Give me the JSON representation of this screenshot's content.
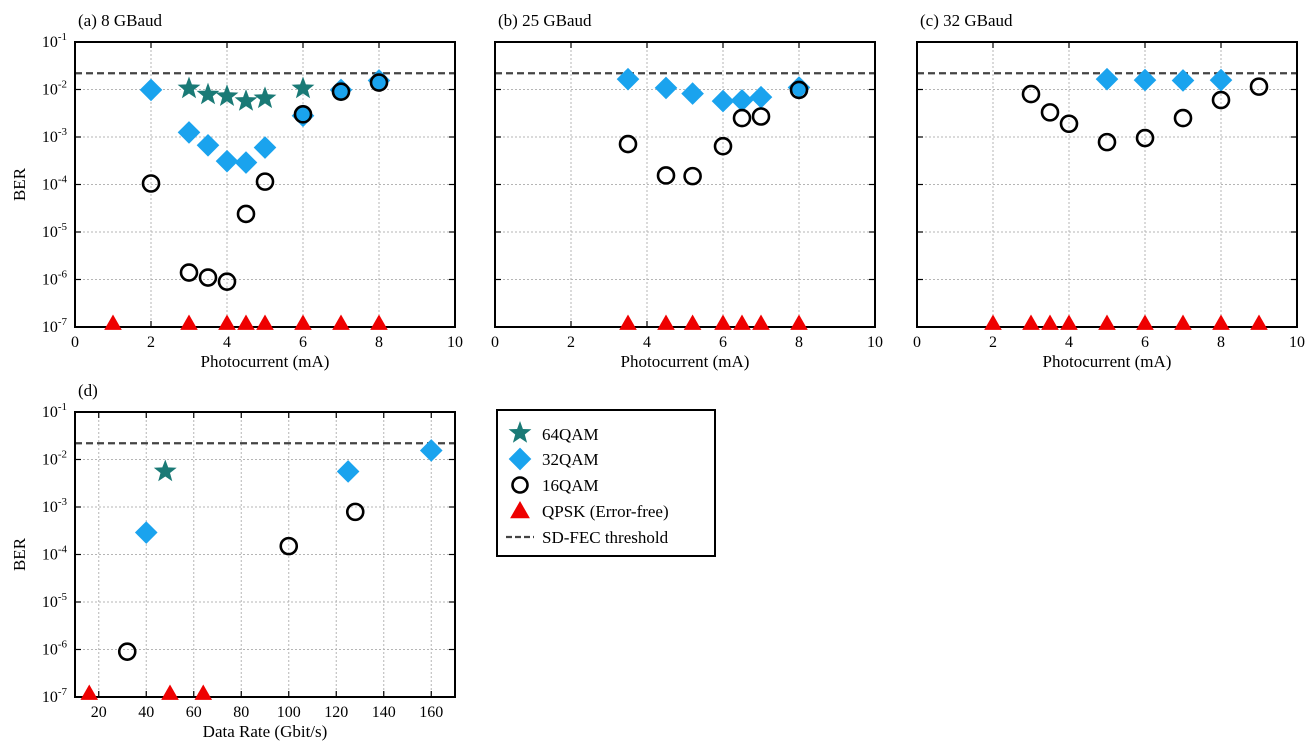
{
  "colors": {
    "q64": "#1a7a76",
    "q32": "#1aa3ee",
    "q16": "#000000",
    "qpsk": "#ee0000",
    "fec": "#444444",
    "grid": "#b5b5b5"
  },
  "legend": {
    "q64": "64QAM",
    "q32": "32QAM",
    "q16": "16QAM",
    "qpsk": "QPSK (Error-free)",
    "fec": "SD-FEC threshold"
  },
  "chart_data": [
    {
      "type": "scatter",
      "title": "(a) 8 GBaud",
      "xlabel": "Photocurrent (mA)",
      "ylabel": "BER",
      "xlim": [
        0,
        10
      ],
      "xticks": [
        0,
        2,
        4,
        6,
        8,
        10
      ],
      "ylim": [
        1e-07,
        0.1
      ],
      "yscale": "log",
      "grid": true,
      "fec_threshold": 0.022,
      "series": [
        {
          "name": "64QAM",
          "x": [
            3,
            3.5,
            4,
            4.5,
            5,
            6
          ],
          "y": [
            0.0105,
            0.0078,
            0.0072,
            0.0057,
            0.0065,
            0.0105
          ]
        },
        {
          "name": "32QAM",
          "x": [
            2,
            3,
            3.5,
            4,
            4.5,
            5,
            6,
            7,
            8
          ],
          "y": [
            0.0098,
            0.00125,
            0.00067,
            0.00031,
            0.00029,
            0.0006,
            0.0028,
            0.0098,
            0.0155
          ]
        },
        {
          "name": "16QAM",
          "x": [
            2,
            3,
            3.5,
            4,
            4.5,
            5,
            6,
            7,
            8
          ],
          "y": [
            0.000105,
            1.4e-06,
            1.1e-06,
            9e-07,
            2.4e-05,
            0.000115,
            0.003,
            0.009,
            0.014
          ]
        },
        {
          "name": "QPSK (Error-free)",
          "x": [
            1,
            3,
            4,
            4.5,
            5,
            6,
            7,
            8
          ],
          "y": [
            1.25e-07,
            1.25e-07,
            1.25e-07,
            1.25e-07,
            1.25e-07,
            1.25e-07,
            1.25e-07,
            1.25e-07
          ]
        }
      ]
    },
    {
      "type": "scatter",
      "title": "(b) 25 GBaud",
      "xlabel": "Photocurrent (mA)",
      "ylabel": "",
      "xlim": [
        0,
        10
      ],
      "xticks": [
        0,
        2,
        4,
        6,
        8,
        10
      ],
      "ylim": [
        1e-07,
        0.1
      ],
      "yscale": "log",
      "grid": true,
      "fec_threshold": 0.022,
      "series": [
        {
          "name": "32QAM",
          "x": [
            3.5,
            4.5,
            5.2,
            6,
            6.5,
            7,
            8
          ],
          "y": [
            0.0165,
            0.0108,
            0.0082,
            0.0057,
            0.0059,
            0.0069,
            0.011
          ]
        },
        {
          "name": "16QAM",
          "x": [
            3.5,
            4.5,
            5.2,
            6,
            6.5,
            7,
            8
          ],
          "y": [
            0.00071,
            0.000155,
            0.00015,
            0.00064,
            0.0025,
            0.0027,
            0.0098
          ]
        },
        {
          "name": "QPSK (Error-free)",
          "x": [
            3.5,
            4.5,
            5.2,
            6,
            6.5,
            7,
            8
          ],
          "y": [
            1.25e-07,
            1.25e-07,
            1.25e-07,
            1.25e-07,
            1.25e-07,
            1.25e-07,
            1.25e-07
          ]
        }
      ]
    },
    {
      "type": "scatter",
      "title": "(c) 32 GBaud",
      "xlabel": "Photocurrent (mA)",
      "ylabel": "",
      "xlim": [
        0,
        10
      ],
      "xticks": [
        0,
        2,
        4,
        6,
        8,
        10
      ],
      "ylim": [
        1e-07,
        0.1
      ],
      "yscale": "log",
      "grid": true,
      "fec_threshold": 0.022,
      "series": [
        {
          "name": "32QAM",
          "x": [
            5,
            6,
            7,
            8
          ],
          "y": [
            0.0165,
            0.0158,
            0.0155,
            0.0158
          ]
        },
        {
          "name": "16QAM",
          "x": [
            3,
            3.5,
            4,
            5,
            6,
            7,
            8,
            9
          ],
          "y": [
            0.008,
            0.0033,
            0.0019,
            0.00078,
            0.00095,
            0.0025,
            0.006,
            0.0115
          ]
        },
        {
          "name": "QPSK (Error-free)",
          "x": [
            2,
            3,
            3.5,
            4,
            5,
            6,
            7,
            8,
            9
          ],
          "y": [
            1.25e-07,
            1.25e-07,
            1.25e-07,
            1.25e-07,
            1.25e-07,
            1.25e-07,
            1.25e-07,
            1.25e-07,
            1.25e-07
          ]
        }
      ]
    },
    {
      "type": "scatter",
      "title": "(d)",
      "xlabel": "Data Rate (Gbit/s)",
      "ylabel": "BER",
      "xlim": [
        10,
        170
      ],
      "xticks": [
        20,
        40,
        60,
        80,
        100,
        120,
        140,
        160
      ],
      "ylim": [
        1e-07,
        0.1
      ],
      "yscale": "log",
      "grid": true,
      "fec_threshold": 0.022,
      "series": [
        {
          "name": "64QAM",
          "x": [
            48
          ],
          "y": [
            0.0056
          ]
        },
        {
          "name": "32QAM",
          "x": [
            40,
            125,
            160
          ],
          "y": [
            0.00029,
            0.0056,
            0.0155
          ]
        },
        {
          "name": "16QAM",
          "x": [
            32,
            100,
            128
          ],
          "y": [
            9e-07,
            0.00015,
            0.00079
          ]
        },
        {
          "name": "QPSK (Error-free)",
          "x": [
            16,
            50,
            64
          ],
          "y": [
            1.25e-07,
            1.25e-07,
            1.25e-07
          ]
        }
      ]
    }
  ]
}
